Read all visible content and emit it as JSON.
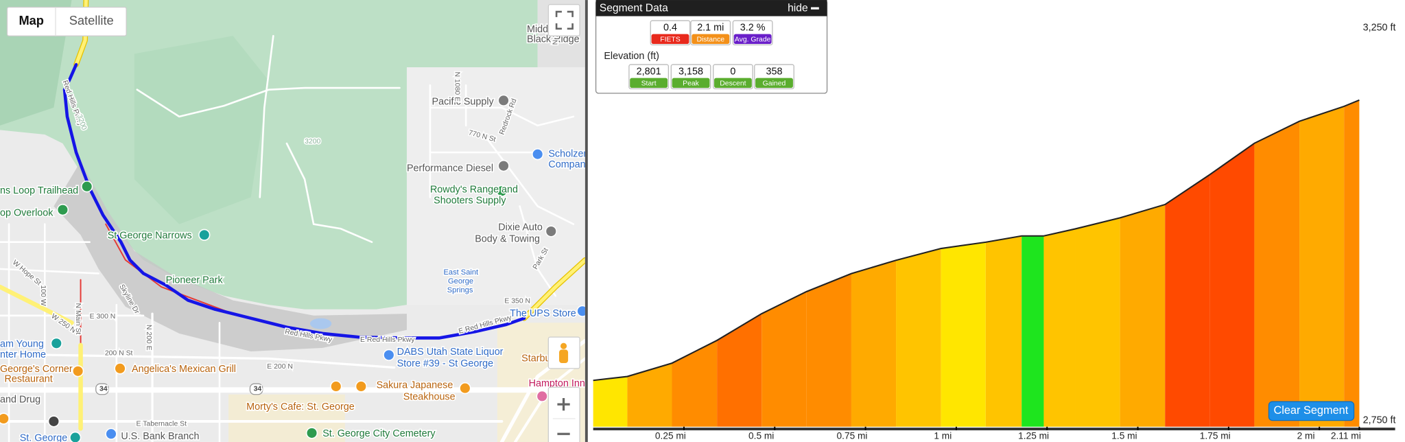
{
  "map": {
    "controls": {
      "map": "Map",
      "satellite": "Satellite"
    },
    "labels": [
      "Midd",
      "Black Ridge",
      "Pacific Supply",
      "770 N St",
      "Redrock Rd",
      "Scholzer",
      "Compan",
      "Performance Diesel",
      "Rowdy's Range and",
      "Shooters Supply",
      "Dixie Auto",
      "Body & Towing",
      "East Saint",
      "George",
      "Springs",
      "Park St",
      "E 350 N",
      "The UPS Store",
      "ns Loop Trailhead",
      "op Overlook",
      "St George Narrows",
      "Pioneer Park",
      "W Hope St",
      "E 300 N",
      "W 250 N",
      "Skyline Dr",
      "am Young",
      "nter Home",
      "200 N St",
      "Angelica's Mexican Grill",
      "George's Corner",
      "Restaurant",
      "E 200 N",
      "DABS Utah State Liquor",
      "Store #39 - St George",
      "Red Hills Pkwy",
      "E Red Hills Pkwy",
      "E Red Hills Pkwy",
      "Starbu",
      "Sakura Japanese",
      "Steakhouse",
      "Hampton Inn",
      "and Drug",
      "Morty's Cafe: St. George",
      "E Tabernacle St",
      "St. George",
      "U.S. Bank Branch",
      "St. George City Cemetery",
      "N 1080 E",
      "N 1320 E",
      "N Main St",
      "100 W",
      "N 200 E",
      "Red Hills Pkwy",
      "3200",
      "3200",
      "34",
      "34"
    ]
  },
  "segment_panel": {
    "title": "Segment Data",
    "hide": "hide",
    "stats": [
      {
        "value": "0.4",
        "label": "FIETS"
      },
      {
        "value": "2.1 mi",
        "label": "Distance"
      },
      {
        "value": "3.2 %",
        "label": "Avg. Grade"
      }
    ],
    "elevation_title": "Elevation (ft)",
    "elevation_stats": [
      {
        "value": "2,801",
        "label": "Start"
      },
      {
        "value": "3,158",
        "label": "Peak"
      },
      {
        "value": "0",
        "label": "Descent"
      },
      {
        "value": "358",
        "label": "Gained"
      }
    ]
  },
  "clear_button": "Clear Segment",
  "chart_data": {
    "type": "area",
    "line_color": "#222222",
    "x": [
      0,
      0.094,
      0.217,
      0.341,
      0.464,
      0.587,
      0.711,
      0.834,
      0.958,
      1.081,
      1.18,
      1.241,
      1.328,
      1.451,
      1.575,
      1.698,
      1.821,
      1.945,
      2.068,
      2.11
    ],
    "values": [
      2801,
      2806,
      2823,
      2852,
      2886,
      2914,
      2937,
      2954,
      2969,
      2977,
      2985,
      2985,
      2994,
      3008,
      3025,
      3063,
      3103,
      3131,
      3150,
      3158
    ],
    "xlim": [
      0,
      2.11
    ],
    "ylim": [
      2750,
      3250
    ],
    "xticks": [
      {
        "value": 0.25,
        "label": "0.25 mi"
      },
      {
        "value": 0.5,
        "label": "0.5 mi"
      },
      {
        "value": 0.75,
        "label": "0.75 mi"
      },
      {
        "value": 1,
        "label": "1 mi"
      },
      {
        "value": 1.25,
        "label": "1.25 mi"
      },
      {
        "value": 1.5,
        "label": "1.5 mi"
      },
      {
        "value": 1.75,
        "label": "1.75 mi"
      },
      {
        "value": 2,
        "label": "2 mi"
      },
      {
        "value": 2.11,
        "label": "2.11 mi"
      }
    ],
    "yticks": [
      {
        "value": 3250,
        "label": "3,250 ft"
      },
      {
        "value": 2750,
        "label": "2,750 ft"
      }
    ]
  }
}
